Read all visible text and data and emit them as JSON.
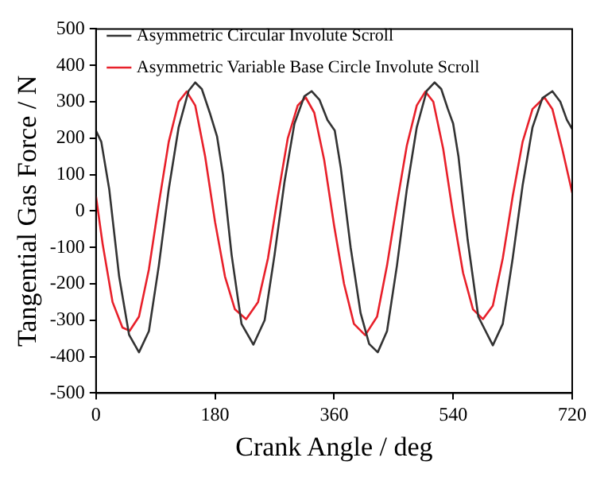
{
  "chart_data": {
    "type": "line",
    "xlabel": "Crank Angle / deg",
    "ylabel": "Tangential Gas Force / N",
    "xlim": [
      0,
      720
    ],
    "xticks": [
      0,
      180,
      360,
      540,
      720
    ],
    "ylim": [
      -500,
      500
    ],
    "yticks": [
      -500,
      -400,
      -300,
      -200,
      -100,
      0,
      100,
      200,
      300,
      400,
      500
    ],
    "grid": false,
    "legend": "top left",
    "marker": "none",
    "line_style": "solid",
    "series": [
      {
        "name": "Asymmetric Circular Involute Scroll",
        "color": "#333333",
        "x": [
          0,
          8,
          20,
          35,
          50,
          65,
          80,
          95,
          110,
          125,
          140,
          150,
          160,
          172,
          183,
          192,
          205,
          220,
          238,
          255,
          270,
          285,
          300,
          315,
          326,
          338,
          350,
          361,
          370,
          385,
          400,
          413,
          426,
          440,
          455,
          470,
          485,
          500,
          512,
          522,
          532,
          540,
          548,
          562,
          578,
          600,
          615,
          630,
          645,
          660,
          675,
          690,
          702,
          712,
          720
        ],
        "values": [
          220,
          190,
          60,
          -180,
          -340,
          -388,
          -330,
          -150,
          60,
          230,
          330,
          353,
          335,
          270,
          205,
          100,
          -120,
          -310,
          -367,
          -300,
          -120,
          80,
          240,
          315,
          329,
          305,
          250,
          221,
          120,
          -100,
          -280,
          -365,
          -388,
          -330,
          -150,
          60,
          230,
          330,
          353,
          335,
          280,
          240,
          150,
          -80,
          -290,
          -369,
          -310,
          -130,
          70,
          230,
          310,
          329,
          300,
          250,
          225
        ]
      },
      {
        "name": "Asymmetric Variable Base Circle Involute Scroll",
        "color": "#e8202a",
        "x": [
          0,
          10,
          25,
          40,
          51,
          65,
          80,
          95,
          110,
          125,
          137,
          150,
          165,
          180,
          195,
          210,
          227,
          245,
          260,
          275,
          290,
          305,
          317,
          330,
          345,
          360,
          375,
          390,
          407,
          425,
          440,
          455,
          470,
          485,
          498,
          510,
          525,
          540,
          555,
          570,
          585,
          600,
          615,
          630,
          645,
          660,
          678,
          690,
          705,
          720
        ],
        "values": [
          40,
          -90,
          -250,
          -320,
          -329,
          -290,
          -160,
          20,
          190,
          300,
          328,
          290,
          150,
          -30,
          -180,
          -270,
          -297,
          -250,
          -130,
          40,
          200,
          290,
          312,
          270,
          140,
          -40,
          -200,
          -310,
          -341,
          -290,
          -150,
          20,
          180,
          290,
          328,
          300,
          170,
          -10,
          -170,
          -270,
          -297,
          -260,
          -130,
          40,
          190,
          280,
          312,
          280,
          170,
          50
        ]
      }
    ]
  }
}
